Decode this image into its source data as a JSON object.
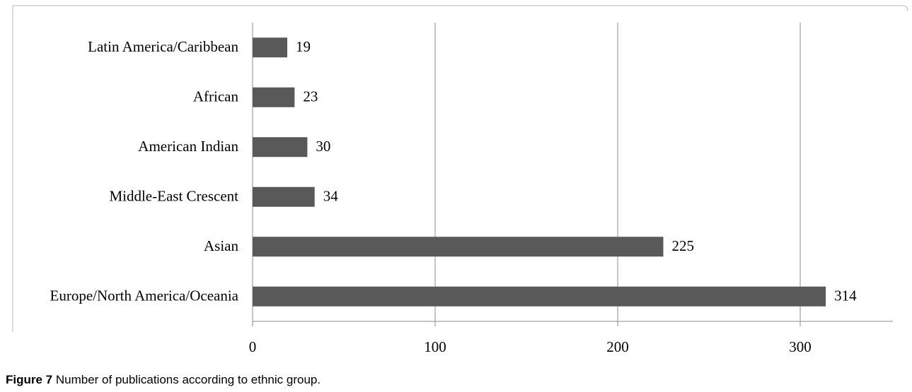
{
  "chart_data": {
    "type": "bar",
    "orientation": "horizontal",
    "categories": [
      "Latin America/Caribbean",
      "African",
      "American Indian",
      "Middle-East Crescent",
      "Asian",
      "Europe/North America/Oceania"
    ],
    "values": [
      19,
      23,
      30,
      34,
      225,
      314
    ],
    "color": "#595959",
    "xlim": [
      0,
      350
    ],
    "xticks": [
      0,
      100,
      200,
      300
    ],
    "grid": true
  },
  "caption": {
    "label": "Figure 7",
    "text": "Number of publications according to ethnic group."
  }
}
